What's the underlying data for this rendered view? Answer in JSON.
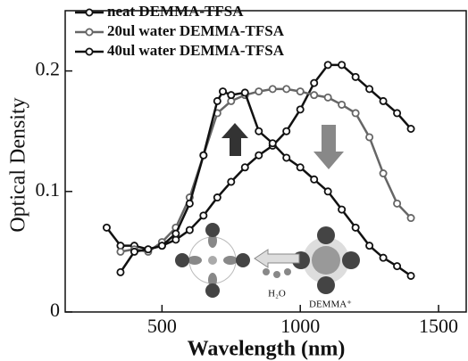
{
  "chart_data": {
    "type": "line",
    "x_label": "Wavelength (nm)",
    "y_label": "Optical Density",
    "xlim": [
      150,
      1600
    ],
    "ylim": [
      0,
      0.25
    ],
    "xticks": [
      500,
      1000,
      1500
    ],
    "yticks": [
      0,
      0.1,
      0.2
    ],
    "legend": "upper left",
    "annotations": [
      "H₂O",
      "DEMMA⁺"
    ],
    "series": [
      {
        "name": "neat DEMMA-TFSA",
        "color": "#111111",
        "x": [
          300,
          350,
          400,
          450,
          500,
          550,
          600,
          650,
          700,
          750,
          800,
          850,
          900,
          950,
          1000,
          1050,
          1100,
          1150,
          1200,
          1250,
          1300,
          1350,
          1400
        ],
        "values": [
          0.07,
          0.055,
          0.055,
          0.052,
          0.055,
          0.06,
          0.068,
          0.08,
          0.095,
          0.108,
          0.12,
          0.13,
          0.138,
          0.15,
          0.168,
          0.19,
          0.205,
          0.205,
          0.195,
          0.185,
          0.175,
          0.165,
          0.152
        ]
      },
      {
        "name": "20ul water DEMMA-TFSA",
        "color": "#666666",
        "x": [
          350,
          400,
          450,
          500,
          550,
          600,
          650,
          700,
          750,
          800,
          850,
          900,
          950,
          1000,
          1050,
          1100,
          1150,
          1200,
          1250,
          1300,
          1350,
          1400
        ],
        "values": [
          0.05,
          0.052,
          0.05,
          0.058,
          0.07,
          0.095,
          0.13,
          0.165,
          0.175,
          0.18,
          0.183,
          0.185,
          0.185,
          0.183,
          0.18,
          0.178,
          0.172,
          0.165,
          0.145,
          0.115,
          0.09,
          0.078
        ]
      },
      {
        "name": "40ul water DEMMA-TFSA",
        "color": "#111111",
        "x": [
          350,
          400,
          450,
          500,
          550,
          600,
          650,
          700,
          720,
          750,
          800,
          850,
          900,
          950,
          1000,
          1050,
          1100,
          1150,
          1200,
          1250,
          1300,
          1350,
          1400
        ],
        "values": [
          0.033,
          0.05,
          0.052,
          0.055,
          0.065,
          0.09,
          0.13,
          0.175,
          0.183,
          0.18,
          0.182,
          0.15,
          0.14,
          0.128,
          0.12,
          0.11,
          0.1,
          0.085,
          0.07,
          0.055,
          0.045,
          0.038,
          0.03
        ]
      }
    ]
  }
}
